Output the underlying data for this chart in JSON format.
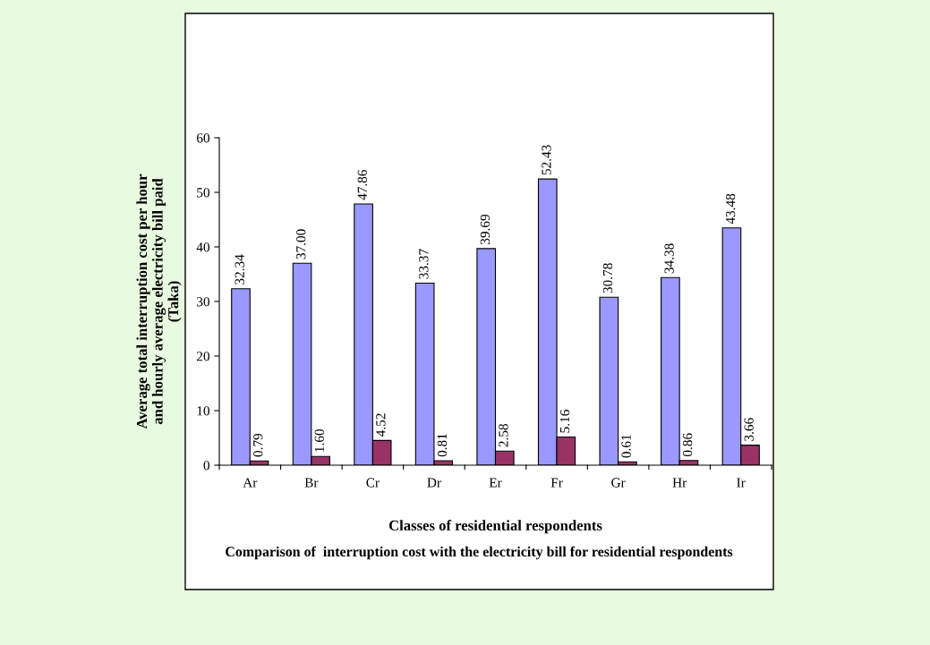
{
  "chart_data": {
    "type": "bar",
    "ylabel": "Average total interruption cost per hour\nand hourly average electricity bill paid\n(Taka)",
    "xlabel": "Classes of residential respondents",
    "annotations": [
      "Comparison of  interruption cost with the electricity bill for residential respondents"
    ],
    "categories": [
      "Ar",
      "Br",
      "Cr",
      "Dr",
      "Er",
      "Fr",
      "Gr",
      "Hr",
      "Ir"
    ],
    "series": [
      {
        "color": "#9999ff",
        "values": [
          32.34,
          37.0,
          47.86,
          33.37,
          39.69,
          52.43,
          30.78,
          34.38,
          43.48
        ],
        "value_labels": [
          "32.34",
          "37.00",
          "47.86",
          "33.37",
          "39.69",
          "52.43",
          "30.78",
          "34.38",
          "43.48"
        ]
      },
      {
        "color": "#993366",
        "values": [
          0.79,
          1.6,
          4.52,
          0.81,
          2.58,
          5.16,
          0.61,
          0.86,
          3.66
        ],
        "value_labels": [
          "0.79",
          "1.60",
          "4.52",
          "0.81",
          "2.58",
          "5.16",
          "0.61",
          "0.86",
          "3.66"
        ]
      }
    ],
    "ylim": [
      0,
      60
    ],
    "yticks": [
      0,
      10,
      20,
      30,
      40,
      50,
      60
    ],
    "grid": false,
    "legend": false
  }
}
